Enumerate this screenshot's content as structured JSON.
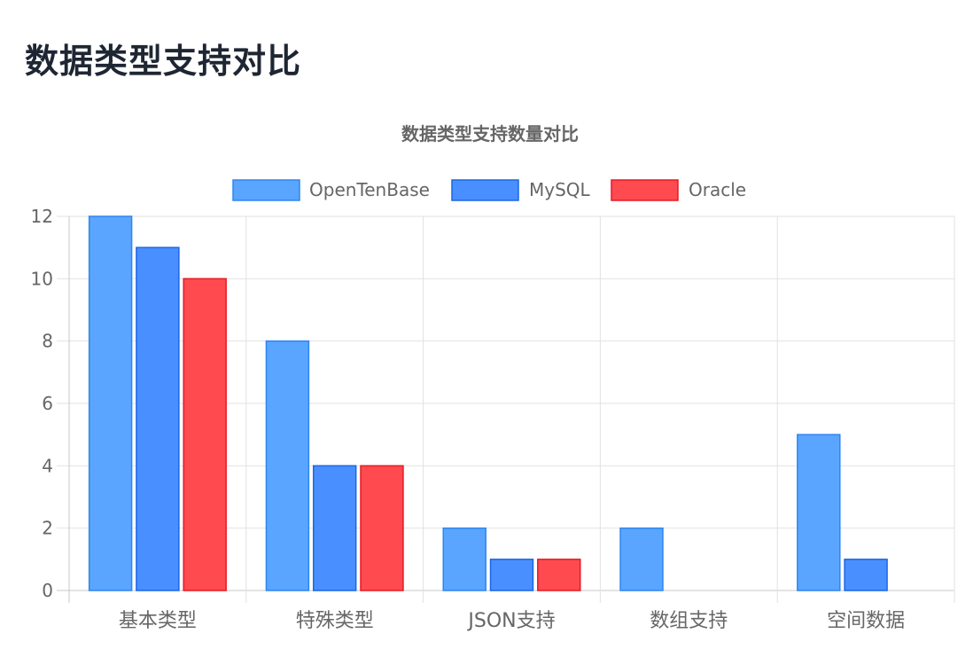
{
  "page": {
    "title": "数据类型支持对比"
  },
  "chart_data": {
    "type": "bar",
    "title": "数据类型支持数量对比",
    "categories": [
      "基本类型",
      "特殊类型",
      "JSON支持",
      "数组支持",
      "空间数据"
    ],
    "series": [
      {
        "name": "OpenTenBase",
        "values": [
          12,
          8,
          2,
          2,
          5
        ],
        "fill": "#5aa5ff",
        "stroke": "#2e86f0"
      },
      {
        "name": "MySQL",
        "values": [
          11,
          4,
          1,
          0,
          1
        ],
        "fill": "#4a8fff",
        "stroke": "#1a66e6"
      },
      {
        "name": "Oracle",
        "values": [
          10,
          4,
          1,
          0,
          0
        ],
        "fill": "#ff4a50",
        "stroke": "#e61a22"
      }
    ],
    "ylim": [
      0,
      12
    ],
    "yticks": [
      0,
      2,
      4,
      6,
      8,
      10,
      12
    ],
    "grid": true,
    "legend": "top-center",
    "xlabel": "",
    "ylabel": ""
  }
}
